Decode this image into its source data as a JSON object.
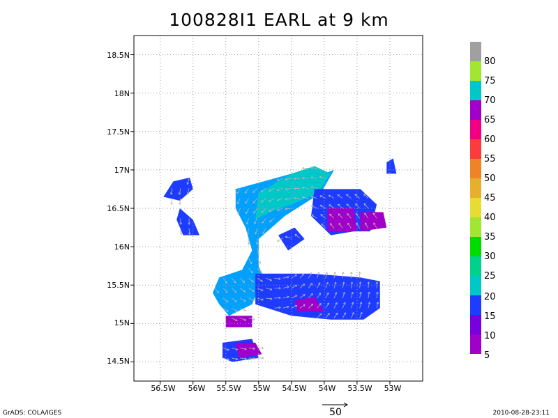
{
  "title": "100828I1 EARL at 9 km",
  "axes": {
    "lat_labels": [
      "18.5N",
      "18N",
      "17.5N",
      "17N",
      "16.5N",
      "16N",
      "15.5N",
      "15N",
      "14.5N"
    ],
    "lon_labels": [
      "56.5W",
      "56W",
      "55.5W",
      "55W",
      "54.5W",
      "54W",
      "53.5W",
      "53W"
    ],
    "lat_range": [
      14.25,
      18.75
    ],
    "lon_range": [
      -56.9,
      -52.5
    ],
    "grid": true
  },
  "colorbar": {
    "labels": [
      "80",
      "75",
      "70",
      "65",
      "60",
      "55",
      "50",
      "45",
      "40",
      "35",
      "30",
      "25",
      "20",
      "15",
      "10",
      "5"
    ],
    "colors": [
      "#a0a0a0",
      "#a0e632",
      "#00c8c8",
      "#a000c8",
      "#f00082",
      "#fa3c3c",
      "#f08228",
      "#e6af2d",
      "#e6dc32",
      "#a0e632",
      "#00dc00",
      "#00d28c",
      "#00c8c8",
      "#1e3cff",
      "#7800dc",
      "#a000c8"
    ]
  },
  "chart_data": {
    "type": "heatmap",
    "variable": "wind speed",
    "regions": [
      {
        "value": 20,
        "polygon": [
          [
            -55.35,
            16.75
          ],
          [
            -54.5,
            16.95
          ],
          [
            -54.25,
            17.0
          ],
          [
            -54.0,
            16.95
          ],
          [
            -53.85,
            17.0
          ],
          [
            -54.05,
            16.7
          ],
          [
            -54.6,
            16.4
          ],
          [
            -55.0,
            16.1
          ],
          [
            -55.0,
            15.75
          ],
          [
            -54.9,
            15.55
          ],
          [
            -55.05,
            15.35
          ],
          [
            -55.1,
            15.25
          ],
          [
            -55.45,
            15.1
          ],
          [
            -55.6,
            15.25
          ],
          [
            -55.7,
            15.4
          ],
          [
            -55.6,
            15.6
          ],
          [
            -55.25,
            15.7
          ],
          [
            -55.1,
            15.95
          ],
          [
            -55.2,
            16.25
          ],
          [
            -55.35,
            16.5
          ]
        ]
      },
      {
        "value": 25,
        "polygon": [
          [
            -55.0,
            16.7
          ],
          [
            -54.5,
            16.95
          ],
          [
            -54.15,
            17.05
          ],
          [
            -53.9,
            16.95
          ],
          [
            -54.1,
            16.7
          ],
          [
            -54.5,
            16.55
          ],
          [
            -54.85,
            16.45
          ],
          [
            -55.05,
            16.35
          ]
        ]
      },
      {
        "value": 15,
        "polygon": [
          [
            -55.05,
            15.65
          ],
          [
            -54.2,
            15.65
          ],
          [
            -53.45,
            15.6
          ],
          [
            -53.15,
            15.55
          ],
          [
            -53.15,
            15.2
          ],
          [
            -53.4,
            15.05
          ],
          [
            -53.9,
            15.05
          ],
          [
            -54.5,
            15.1
          ],
          [
            -55.05,
            15.25
          ]
        ]
      },
      {
        "value": 15,
        "polygon": [
          [
            -54.15,
            16.75
          ],
          [
            -53.45,
            16.75
          ],
          [
            -53.2,
            16.55
          ],
          [
            -53.3,
            16.2
          ],
          [
            -53.55,
            16.2
          ],
          [
            -53.9,
            16.15
          ],
          [
            -54.2,
            16.4
          ]
        ]
      },
      {
        "value": 15,
        "polygon": [
          [
            -56.3,
            16.85
          ],
          [
            -56.05,
            16.9
          ],
          [
            -56.0,
            16.75
          ],
          [
            -56.2,
            16.6
          ],
          [
            -56.45,
            16.65
          ]
        ]
      },
      {
        "value": 15,
        "polygon": [
          [
            -56.2,
            16.5
          ],
          [
            -56.0,
            16.35
          ],
          [
            -55.9,
            16.15
          ],
          [
            -56.15,
            16.15
          ],
          [
            -56.25,
            16.35
          ]
        ]
      },
      {
        "value": 15,
        "polygon": [
          [
            -53.05,
            17.1
          ],
          [
            -52.95,
            17.15
          ],
          [
            -52.9,
            16.95
          ],
          [
            -53.05,
            16.95
          ]
        ]
      },
      {
        "value": 15,
        "polygon": [
          [
            -55.55,
            14.75
          ],
          [
            -55.1,
            14.8
          ],
          [
            -55.0,
            14.55
          ],
          [
            -55.4,
            14.5
          ],
          [
            -55.55,
            14.55
          ]
        ]
      },
      {
        "value": 5,
        "polygon": [
          [
            -53.95,
            16.5
          ],
          [
            -53.55,
            16.5
          ],
          [
            -53.5,
            16.2
          ],
          [
            -53.95,
            16.2
          ]
        ]
      },
      {
        "value": 5,
        "polygon": [
          [
            -53.45,
            16.45
          ],
          [
            -53.1,
            16.45
          ],
          [
            -53.05,
            16.25
          ],
          [
            -53.45,
            16.2
          ]
        ]
      },
      {
        "value": 5,
        "polygon": [
          [
            -54.45,
            15.3
          ],
          [
            -54.15,
            15.35
          ],
          [
            -54.0,
            15.15
          ],
          [
            -54.4,
            15.15
          ]
        ]
      },
      {
        "value": 5,
        "polygon": [
          [
            -55.5,
            15.1
          ],
          [
            -55.1,
            15.1
          ],
          [
            -55.1,
            14.95
          ],
          [
            -55.5,
            14.95
          ]
        ]
      },
      {
        "value": 5,
        "polygon": [
          [
            -55.35,
            14.75
          ],
          [
            -55.05,
            14.75
          ],
          [
            -54.95,
            14.6
          ],
          [
            -55.3,
            14.55
          ]
        ]
      },
      {
        "value": 15,
        "polygon": [
          [
            -54.7,
            16.15
          ],
          [
            -54.45,
            16.25
          ],
          [
            -54.3,
            16.1
          ],
          [
            -54.55,
            15.95
          ]
        ]
      }
    ],
    "vectors_note": "wind vectors (reference arrow 50)",
    "vector_reference": "50"
  },
  "footer": {
    "left": "GrADS: COLA/IGES",
    "right": "2010-08-28-23:11",
    "reference_label": "50"
  }
}
